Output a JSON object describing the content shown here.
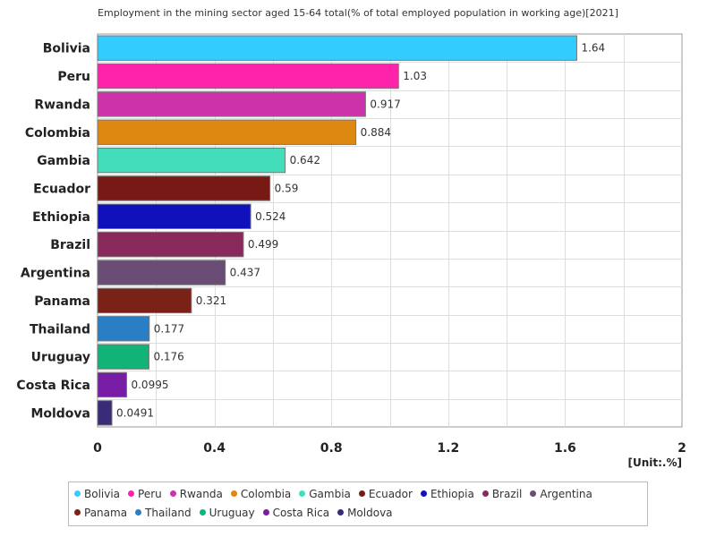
{
  "chart_data": {
    "type": "bar",
    "orientation": "horizontal",
    "title": "Employment in the mining sector aged 15-64 total(% of total employed population in working age)[2021]",
    "unit_label": "[Unit:.%]",
    "categories": [
      "Bolivia",
      "Peru",
      "Rwanda",
      "Colombia",
      "Gambia",
      "Ecuador",
      "Ethiopia",
      "Brazil",
      "Argentina",
      "Panama",
      "Thailand",
      "Uruguay",
      "Costa Rica",
      "Moldova"
    ],
    "values": [
      1.64,
      1.03,
      0.917,
      0.884,
      0.642,
      0.59,
      0.524,
      0.499,
      0.437,
      0.321,
      0.177,
      0.176,
      0.0995,
      0.0491
    ],
    "value_labels": [
      "1.64",
      "1.03",
      "0.917",
      "0.884",
      "0.642",
      "0.59",
      "0.524",
      "0.499",
      "0.437",
      "0.321",
      "0.177",
      "0.176",
      "0.0995",
      "0.0491"
    ],
    "colors": [
      "#33ccff",
      "#ff22aa",
      "#cc33aa",
      "#dd8811",
      "#44ddbb",
      "#771a15",
      "#1111bb",
      "#882a5c",
      "#6a4c74",
      "#7a2218",
      "#2a7fc4",
      "#11b377",
      "#7a1da6",
      "#3a2a78"
    ],
    "xlim": [
      0,
      2
    ],
    "xticks": [
      "0",
      "0.4",
      "0.8",
      "1.2",
      "1.6",
      "2"
    ],
    "xtick_values": [
      0,
      0.4,
      0.8,
      1.2,
      1.6,
      2
    ],
    "grid": true,
    "legend_position": "bottom"
  }
}
